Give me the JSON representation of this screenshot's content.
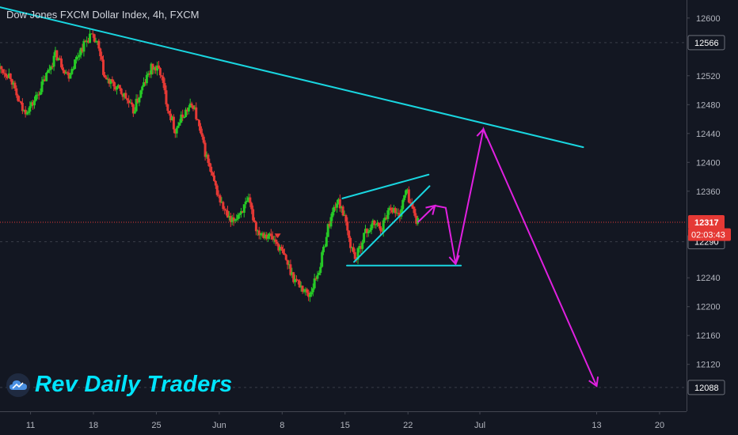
{
  "chart_title": "Dow Jones FXCM Dollar Index, 4h, FXCM",
  "brand": {
    "name": "Rev Daily Traders",
    "logo_icon": "tradingview-cloud-icon"
  },
  "colors": {
    "background": "#131722",
    "up": "#26c926",
    "down": "#e53935",
    "trendline": "#19d6e0",
    "projection": "#e020e0",
    "axis_text": "#b2b5be",
    "price_line": "#e53935"
  },
  "chart_data": {
    "type": "candlestick",
    "interval": "4h",
    "ylim": [
      12055,
      12625
    ],
    "yticks": [
      12600,
      12520,
      12480,
      12440,
      12400,
      12360,
      12240,
      12200,
      12160,
      12120
    ],
    "xticks": [
      "11",
      "18",
      "25",
      "Jun",
      "8",
      "15",
      "22",
      "Jul",
      "13",
      "20"
    ],
    "xtick_days": [
      11,
      18,
      25,
      32,
      39,
      46,
      53,
      61,
      74,
      81
    ],
    "xlim_days": [
      7.6,
      84
    ],
    "price_tags": [
      {
        "label": "12566",
        "value": 12566,
        "style": "dark"
      },
      {
        "label": "12317",
        "value": 12317,
        "style": "red"
      },
      {
        "label": "12290",
        "value": 12290,
        "style": "dark"
      },
      {
        "label": "12088",
        "value": 12088,
        "style": "dark"
      }
    ],
    "countdown": {
      "label": "02:03:43",
      "value": 12301
    },
    "current_price": 12317,
    "anchors": [
      {
        "day": 7.6,
        "close": 12530
      },
      {
        "day": 8.8,
        "close": 12520
      },
      {
        "day": 9.3,
        "close": 12495
      },
      {
        "day": 10.2,
        "close": 12470
      },
      {
        "day": 11.2,
        "close": 12480
      },
      {
        "day": 12.4,
        "close": 12510
      },
      {
        "day": 13.8,
        "close": 12550
      },
      {
        "day": 15.2,
        "close": 12520
      },
      {
        "day": 16.5,
        "close": 12555
      },
      {
        "day": 17.6,
        "close": 12575
      },
      {
        "day": 18.4,
        "close": 12565
      },
      {
        "day": 19.3,
        "close": 12515
      },
      {
        "day": 20.4,
        "close": 12505
      },
      {
        "day": 21.6,
        "close": 12490
      },
      {
        "day": 22.4,
        "close": 12470
      },
      {
        "day": 23.5,
        "close": 12505
      },
      {
        "day": 24.5,
        "close": 12532
      },
      {
        "day": 25.4,
        "close": 12527
      },
      {
        "day": 26.3,
        "close": 12475
      },
      {
        "day": 27.1,
        "close": 12445
      },
      {
        "day": 28.2,
        "close": 12470
      },
      {
        "day": 29.1,
        "close": 12480
      },
      {
        "day": 30.3,
        "close": 12420
      },
      {
        "day": 31.3,
        "close": 12375
      },
      {
        "day": 32.3,
        "close": 12340
      },
      {
        "day": 33.3,
        "close": 12315
      },
      {
        "day": 34.2,
        "close": 12330
      },
      {
        "day": 35.3,
        "close": 12345
      },
      {
        "day": 36.2,
        "close": 12305
      },
      {
        "day": 37.4,
        "close": 12300
      },
      {
        "day": 38.3,
        "close": 12290
      },
      {
        "day": 39.4,
        "close": 12265
      },
      {
        "day": 40.3,
        "close": 12240
      },
      {
        "day": 41.3,
        "close": 12225
      },
      {
        "day": 42.0,
        "close": 12215
      },
      {
        "day": 43.2,
        "close": 12255
      },
      {
        "day": 44.1,
        "close": 12310
      },
      {
        "day": 45.0,
        "close": 12345
      },
      {
        "day": 45.6,
        "close": 12340
      },
      {
        "day": 46.5,
        "close": 12290
      },
      {
        "day": 47.2,
        "close": 12265
      },
      {
        "day": 48.1,
        "close": 12300
      },
      {
        "day": 49.2,
        "close": 12315
      },
      {
        "day": 50.1,
        "close": 12310
      },
      {
        "day": 51.0,
        "close": 12340
      },
      {
        "day": 52.0,
        "close": 12325
      },
      {
        "day": 52.8,
        "close": 12362
      },
      {
        "day": 53.5,
        "close": 12335
      },
      {
        "day": 54.1,
        "close": 12317
      }
    ],
    "trendlines": [
      {
        "name": "descending-resistance",
        "color": "trendline",
        "from": [
          7.6,
          12615
        ],
        "to": [
          72.5,
          12421
        ]
      },
      {
        "name": "wedge-upper",
        "color": "trendline",
        "from": [
          45.7,
          12350
        ],
        "to": [
          55.3,
          12383
        ]
      },
      {
        "name": "wedge-lower",
        "color": "trendline",
        "from": [
          47.0,
          12262
        ],
        "to": [
          55.4,
          12367
        ]
      },
      {
        "name": "support",
        "color": "trendline",
        "from": [
          46.2,
          12257
        ],
        "to": [
          58.9,
          12257
        ]
      }
    ],
    "projection": {
      "color": "projection",
      "points": [
        [
          54.1,
          12317
        ],
        [
          56.0,
          12340
        ],
        [
          57.2,
          12337
        ],
        [
          58.3,
          12259
        ],
        [
          61.4,
          12446
        ],
        [
          74.0,
          12090
        ]
      ],
      "arrowheads": [
        [
          56.0,
          12340
        ],
        [
          58.3,
          12259
        ],
        [
          61.4,
          12446
        ],
        [
          74.0,
          12090
        ]
      ]
    },
    "markers": [
      {
        "day": 38.5,
        "value": 12297,
        "shape": "down-triangle",
        "color": "down"
      }
    ]
  }
}
